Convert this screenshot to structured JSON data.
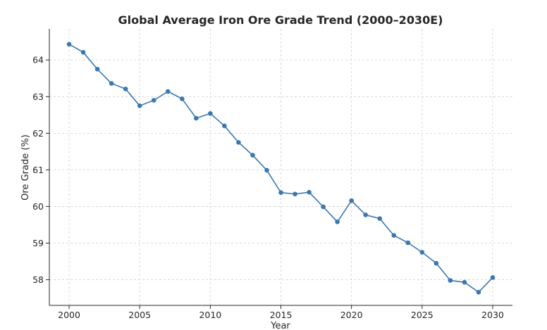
{
  "chart_data": {
    "type": "line",
    "title": "Global Average Iron Ore Grade Trend (2000–2030E)",
    "xlabel": "Year",
    "ylabel": "Ore Grade (%)",
    "xlim": [
      1998.6,
      2031.4
    ],
    "ylim": [
      57.3,
      64.85
    ],
    "xticks": [
      2000,
      2005,
      2010,
      2015,
      2020,
      2025,
      2030
    ],
    "yticks": [
      58,
      59,
      60,
      61,
      62,
      63,
      64
    ],
    "grid": true,
    "series": [
      {
        "name": "Ore Grade",
        "color": "#3a78b0",
        "x": [
          2000,
          2001,
          2002,
          2003,
          2004,
          2005,
          2006,
          2007,
          2008,
          2009,
          2010,
          2011,
          2012,
          2013,
          2014,
          2015,
          2016,
          2017,
          2018,
          2019,
          2020,
          2021,
          2022,
          2023,
          2024,
          2025,
          2026,
          2027,
          2028,
          2029,
          2030
        ],
        "values": [
          64.43,
          64.21,
          63.75,
          63.36,
          63.21,
          62.75,
          62.9,
          63.14,
          62.94,
          62.41,
          62.54,
          62.2,
          61.75,
          61.4,
          60.99,
          60.38,
          60.34,
          60.39,
          59.99,
          59.58,
          60.16,
          59.77,
          59.67,
          59.21,
          59.01,
          58.75,
          58.45,
          57.98,
          57.93,
          57.66,
          58.06
        ]
      }
    ]
  }
}
